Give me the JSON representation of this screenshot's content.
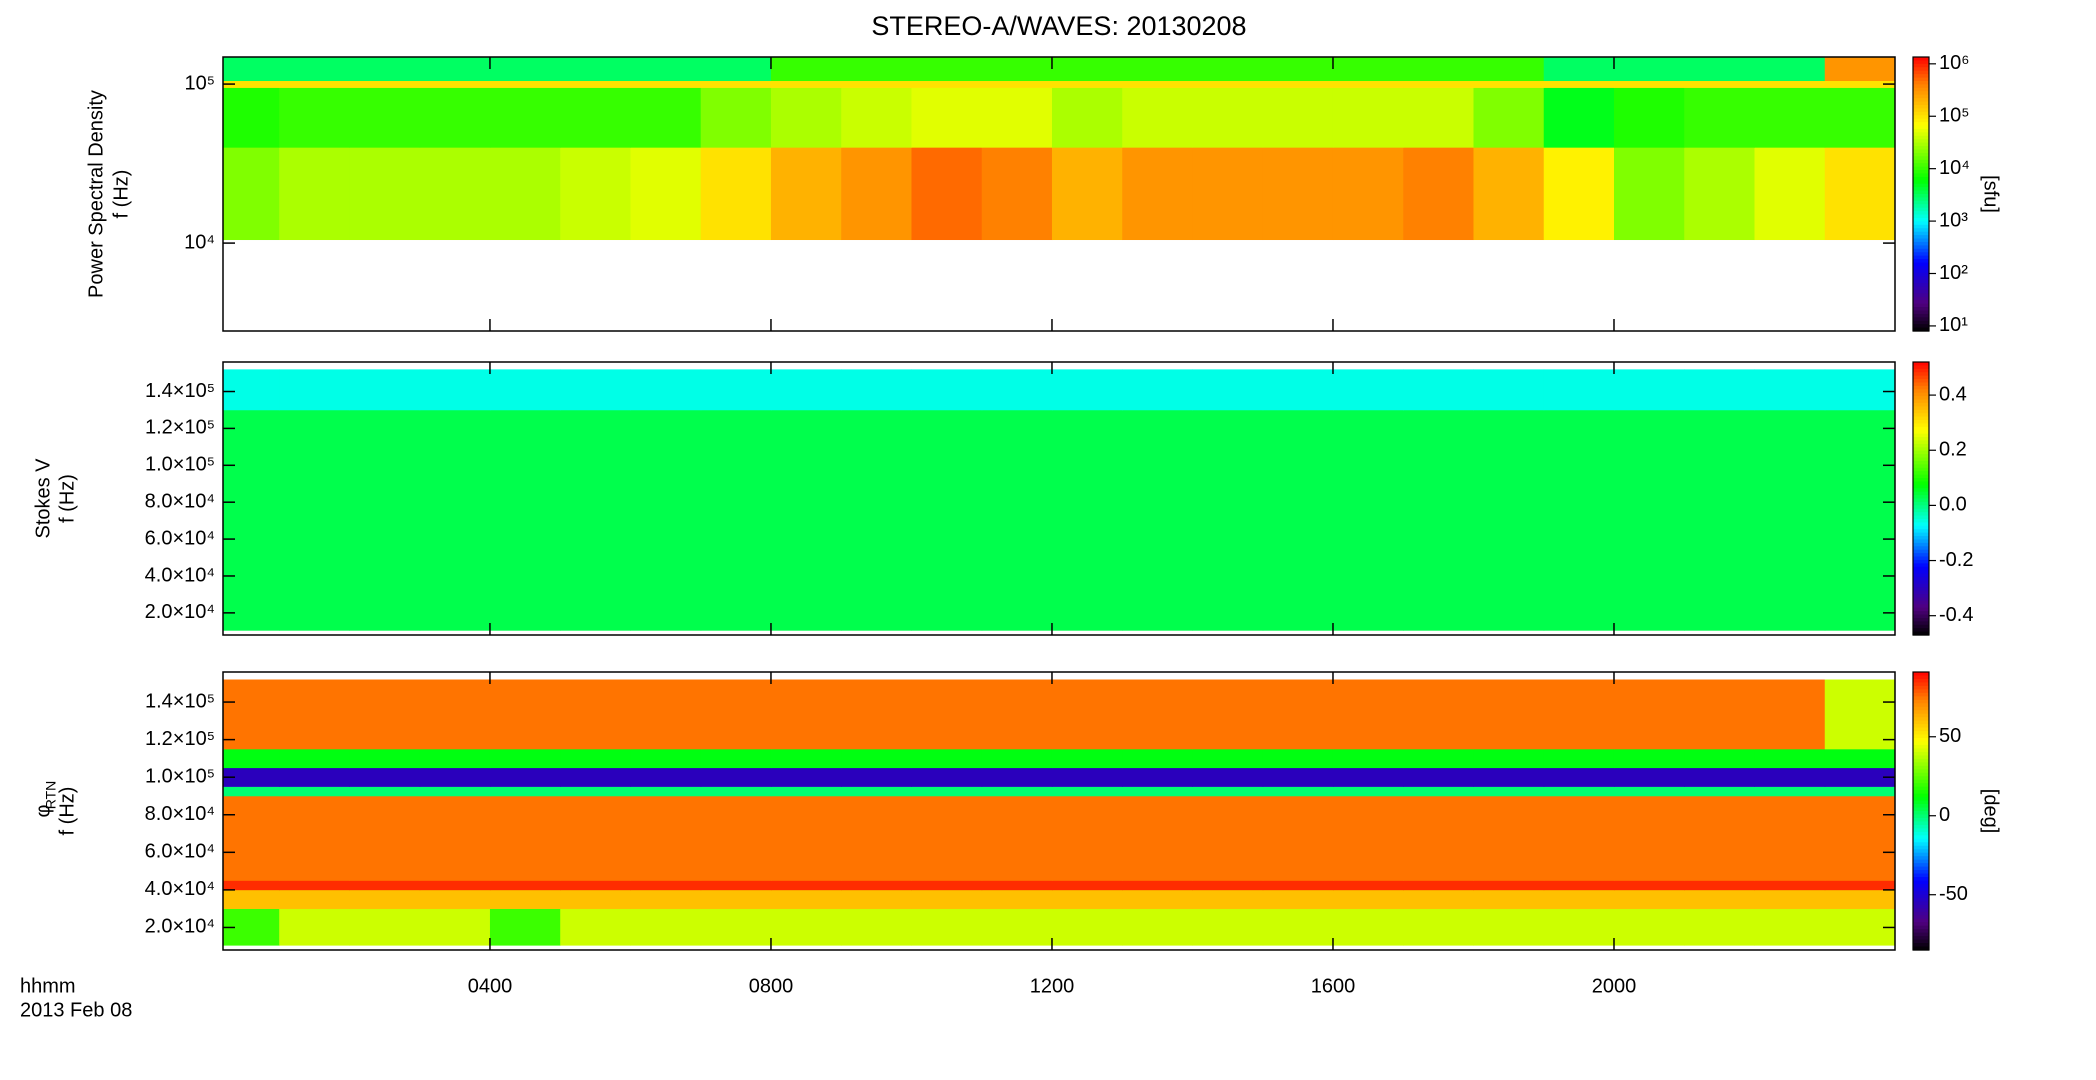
{
  "chart_data": {
    "title": "STEREO-A/WAVES: 20130208",
    "x_label": "hhmm",
    "date": "2013 Feb 08",
    "xlim": [
      0.2,
      24
    ],
    "xticks": [
      {
        "value": 4,
        "label": "0400"
      },
      {
        "value": 8,
        "label": "0800"
      },
      {
        "value": 12,
        "label": "1200"
      },
      {
        "value": 16,
        "label": "1600"
      },
      {
        "value": 20,
        "label": "2000"
      }
    ],
    "bins": [
      0.2,
      1,
      2,
      3,
      4,
      5,
      6,
      7,
      8,
      9,
      10,
      11,
      12,
      13,
      14,
      15,
      16,
      17,
      18,
      19,
      20,
      21,
      22,
      23,
      24
    ],
    "panels": [
      {
        "type": "heatmap",
        "ylabel": [
          "Power Spectral Density",
          "f (Hz)"
        ],
        "log_y": true,
        "ylim": [
          2800,
          148000
        ],
        "yticks": [
          {
            "value": 10000,
            "label": "10⁴"
          },
          {
            "value": 100000,
            "label": "10⁵"
          }
        ],
        "ybins": [
          10500,
          40000,
          95000,
          105000,
          148000
        ],
        "z": [
          [
            20000,
            30000,
            30000,
            30000,
            30000,
            40000,
            50000,
            100000,
            200000,
            300000,
            500000,
            400000,
            200000,
            300000,
            300000,
            300000,
            300000,
            400000,
            200000,
            80000,
            20000,
            30000,
            50000,
            100000
          ],
          [
            8000,
            10000,
            10000,
            10000,
            10000,
            10000,
            10000,
            20000,
            30000,
            40000,
            50000,
            50000,
            30000,
            40000,
            40000,
            40000,
            40000,
            40000,
            20000,
            5000,
            8000,
            10000,
            10000,
            10000
          ],
          [
            100000,
            100000,
            100000,
            100000,
            100000,
            100000,
            100000,
            100000,
            100000,
            100000,
            100000,
            100000,
            100000,
            100000,
            100000,
            100000,
            100000,
            100000,
            100000,
            100000,
            100000,
            100000,
            100000,
            100000
          ],
          [
            3000,
            3000,
            3000,
            3000,
            3000,
            3000,
            3000,
            3000,
            10000,
            10000,
            10000,
            10000,
            10000,
            10000,
            10000,
            10000,
            10000,
            10000,
            10000,
            3000,
            3000,
            3000,
            3000,
            300000
          ]
        ],
        "clim": [
          8,
          1350000
        ],
        "log_c": true,
        "cticks": [
          {
            "value": 10,
            "label": "10¹"
          },
          {
            "value": 100,
            "label": "10²"
          },
          {
            "value": 1000,
            "label": "10³"
          },
          {
            "value": 10000,
            "label": "10⁴"
          },
          {
            "value": 100000,
            "label": "10⁵"
          },
          {
            "value": 1000000,
            "label": "10⁶"
          }
        ],
        "clabel": "[sfu]"
      },
      {
        "type": "heatmap",
        "ylabel": [
          "Stokes V",
          "f (Hz)"
        ],
        "log_y": false,
        "ylim": [
          8000,
          156000
        ],
        "yticks": [
          {
            "value": 20000,
            "label": "2.0×10⁴"
          },
          {
            "value": 40000,
            "label": "4.0×10⁴"
          },
          {
            "value": 60000,
            "label": "6.0×10⁴"
          },
          {
            "value": 80000,
            "label": "8.0×10⁴"
          },
          {
            "value": 100000,
            "label": "1.0×10⁵"
          },
          {
            "value": 120000,
            "label": "1.2×10⁵"
          },
          {
            "value": 140000,
            "label": "1.4×10⁵"
          }
        ],
        "ybins": [
          10500,
          130000,
          152000
        ],
        "z": [
          [
            0.03,
            0.03,
            0.03,
            0.03,
            0.03,
            0.03,
            0.03,
            0.03,
            0.03,
            0.03,
            0.03,
            0.03,
            0.03,
            0.03,
            0.03,
            0.03,
            0.03,
            0.03,
            0.03,
            0.03,
            0.03,
            0.03,
            0.03,
            0.03
          ],
          [
            -0.06,
            -0.06,
            -0.06,
            -0.06,
            -0.06,
            -0.06,
            -0.06,
            -0.06,
            -0.06,
            -0.06,
            -0.06,
            -0.06,
            -0.06,
            -0.06,
            -0.06,
            -0.06,
            -0.06,
            -0.06,
            -0.06,
            -0.06,
            -0.06,
            -0.06,
            -0.06,
            -0.06
          ]
        ],
        "clim": [
          -0.47,
          0.52
        ],
        "log_c": false,
        "cticks": [
          -0.4,
          -0.2,
          {
            "value": 0,
            "label": "0.0"
          },
          0.2,
          0.4
        ]
      },
      {
        "type": "heatmap",
        "ylabel": [
          "φ",
          "f (Hz)"
        ],
        "ylabel_sub": "RTN",
        "log_y": false,
        "ylim": [
          8000,
          156000
        ],
        "yticks": [
          {
            "value": 20000,
            "label": "2.0×10⁴"
          },
          {
            "value": 40000,
            "label": "4.0×10⁴"
          },
          {
            "value": 60000,
            "label": "6.0×10⁴"
          },
          {
            "value": 80000,
            "label": "8.0×10⁴"
          },
          {
            "value": 100000,
            "label": "1.0×10⁵"
          },
          {
            "value": 120000,
            "label": "1.2×10⁵"
          },
          {
            "value": 140000,
            "label": "1.4×10⁵"
          }
        ],
        "ybins": [
          10500,
          30000,
          40000,
          45000,
          90000,
          95000,
          105000,
          115000,
          152000
        ],
        "z": [
          [
            20,
            40,
            40,
            40,
            20,
            40,
            40,
            40,
            40,
            40,
            40,
            40,
            40,
            40,
            40,
            40,
            40,
            40,
            40,
            40,
            40,
            40,
            40,
            40
          ],
          [
            60,
            60,
            60,
            60,
            60,
            60,
            60,
            60,
            60,
            60,
            60,
            60,
            60,
            60,
            60,
            60,
            60,
            60,
            60,
            60,
            60,
            60,
            60,
            60
          ],
          [
            85,
            85,
            85,
            85,
            85,
            85,
            85,
            85,
            85,
            85,
            85,
            85,
            85,
            85,
            85,
            85,
            85,
            85,
            85,
            85,
            85,
            85,
            85,
            85
          ],
          [
            75,
            75,
            75,
            75,
            75,
            75,
            75,
            75,
            75,
            75,
            75,
            75,
            75,
            75,
            75,
            75,
            75,
            75,
            75,
            75,
            75,
            75,
            75,
            75
          ],
          [
            0,
            0,
            0,
            0,
            0,
            0,
            0,
            0,
            0,
            0,
            0,
            0,
            0,
            0,
            0,
            0,
            0,
            0,
            0,
            0,
            0,
            0,
            0,
            0
          ],
          [
            -55,
            -55,
            -55,
            -55,
            -55,
            -55,
            -55,
            -55,
            -55,
            -55,
            -55,
            -55,
            -55,
            -55,
            -55,
            -55,
            -55,
            -55,
            -55,
            -55,
            -55,
            -55,
            -55,
            -55
          ],
          [
            10,
            10,
            10,
            10,
            10,
            10,
            10,
            10,
            10,
            10,
            10,
            10,
            10,
            10,
            10,
            10,
            10,
            10,
            10,
            10,
            10,
            10,
            10,
            10
          ],
          [
            75,
            75,
            75,
            75,
            75,
            75,
            75,
            75,
            75,
            75,
            75,
            75,
            75,
            75,
            75,
            75,
            75,
            75,
            75,
            75,
            75,
            75,
            75,
            40
          ]
        ],
        "clim": [
          -85,
          91
        ],
        "log_c": false,
        "cticks": [
          -50,
          0,
          50
        ],
        "clabel": "[deg]"
      }
    ]
  }
}
